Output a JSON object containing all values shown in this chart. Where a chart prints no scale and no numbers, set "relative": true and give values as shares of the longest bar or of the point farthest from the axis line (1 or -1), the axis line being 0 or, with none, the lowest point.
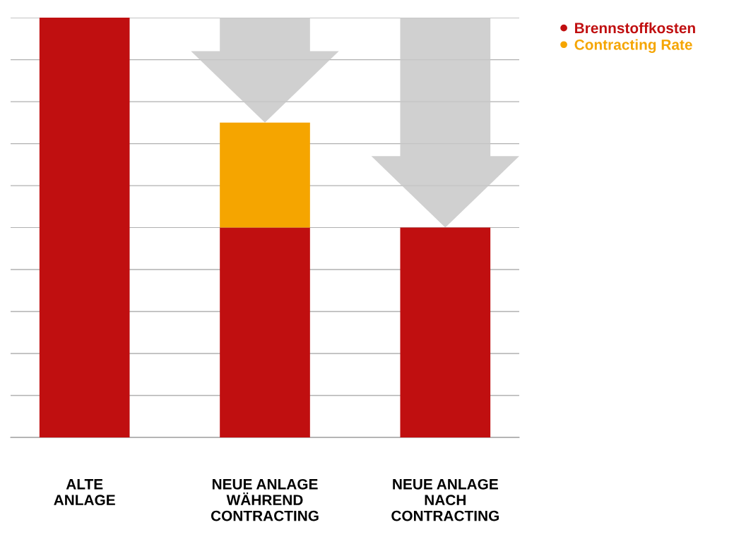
{
  "chart_data": {
    "type": "bar",
    "stacked": true,
    "relative": true,
    "grid": "y",
    "legend": "top right",
    "categories": [
      "ALTE\nANLAGE",
      "NEUE ANLAGE\nWÄHREND\nCONTRACTING",
      "NEUE ANLAGE\nNACH\nCONTRACTING"
    ],
    "series": [
      {
        "name": "Brennstoffkosten",
        "color": "#c00f10",
        "values": [
          1,
          0.5,
          0.5
        ]
      },
      {
        "name": "Contracting Rate",
        "color": "#f5a500",
        "values": [
          null,
          0.25,
          null
        ]
      }
    ]
  }
}
